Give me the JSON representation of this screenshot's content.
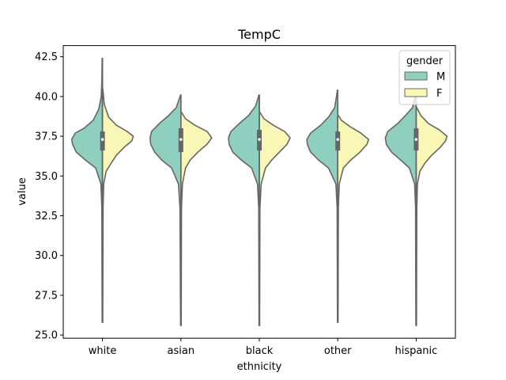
{
  "chart_data": {
    "type": "violin",
    "title": "TempC",
    "xlabel": "ethnicity",
    "ylabel": "value",
    "ylim": [
      24.8,
      43.2
    ],
    "yticks": [
      "25.0",
      "27.5",
      "30.0",
      "32.5",
      "35.0",
      "37.5",
      "40.0",
      "42.5"
    ],
    "categories": [
      "white",
      "asian",
      "black",
      "other",
      "hispanic"
    ],
    "split": true,
    "legend": {
      "title": "gender",
      "position": "top-right",
      "entries": [
        {
          "label": "M",
          "color": "#8ecfc0"
        },
        {
          "label": "F",
          "color": "#f9f7b6"
        }
      ]
    },
    "series": [
      {
        "name": "M",
        "color": "#8ecfc0",
        "distributions": [
          {
            "category": "white",
            "min": 25.8,
            "max": 42.4,
            "median": 37.3,
            "q1": 36.6,
            "q3": 37.8,
            "profile": [
              [
                25.8,
                0.01
              ],
              [
                33.0,
                0.02
              ],
              [
                34.5,
                0.05
              ],
              [
                35.5,
                0.22
              ],
              [
                36.0,
                0.55
              ],
              [
                36.5,
                0.85
              ],
              [
                37.0,
                0.97
              ],
              [
                37.3,
                1.0
              ],
              [
                37.7,
                0.88
              ],
              [
                38.0,
                0.6
              ],
              [
                38.5,
                0.3
              ],
              [
                39.2,
                0.12
              ],
              [
                40.0,
                0.04
              ],
              [
                41.0,
                0.02
              ],
              [
                42.4,
                0.01
              ]
            ]
          },
          {
            "category": "asian",
            "min": 25.6,
            "max": 40.1,
            "median": 37.3,
            "q1": 36.5,
            "q3": 38.0,
            "profile": [
              [
                25.6,
                0.01
              ],
              [
                33.0,
                0.03
              ],
              [
                34.5,
                0.08
              ],
              [
                35.5,
                0.3
              ],
              [
                36.0,
                0.62
              ],
              [
                36.5,
                0.85
              ],
              [
                37.0,
                0.98
              ],
              [
                37.4,
                1.0
              ],
              [
                37.8,
                0.95
              ],
              [
                38.3,
                0.7
              ],
              [
                38.8,
                0.4
              ],
              [
                39.3,
                0.15
              ],
              [
                40.1,
                0.01
              ]
            ]
          },
          {
            "category": "black",
            "min": 25.6,
            "max": 40.1,
            "median": 37.3,
            "q1": 36.6,
            "q3": 37.9,
            "profile": [
              [
                25.6,
                0.01
              ],
              [
                33.0,
                0.02
              ],
              [
                34.5,
                0.06
              ],
              [
                35.5,
                0.25
              ],
              [
                36.0,
                0.58
              ],
              [
                36.5,
                0.86
              ],
              [
                37.0,
                0.98
              ],
              [
                37.4,
                1.0
              ],
              [
                37.8,
                0.92
              ],
              [
                38.3,
                0.65
              ],
              [
                38.8,
                0.35
              ],
              [
                39.4,
                0.12
              ],
              [
                40.1,
                0.01
              ]
            ]
          },
          {
            "category": "other",
            "min": 25.8,
            "max": 40.4,
            "median": 37.3,
            "q1": 36.6,
            "q3": 37.8,
            "profile": [
              [
                25.8,
                0.01
              ],
              [
                33.0,
                0.02
              ],
              [
                34.5,
                0.06
              ],
              [
                35.5,
                0.3
              ],
              [
                36.0,
                0.62
              ],
              [
                36.5,
                0.88
              ],
              [
                37.0,
                0.99
              ],
              [
                37.3,
                1.0
              ],
              [
                37.7,
                0.88
              ],
              [
                38.2,
                0.55
              ],
              [
                38.7,
                0.3
              ],
              [
                39.3,
                0.1
              ],
              [
                40.4,
                0.01
              ]
            ]
          },
          {
            "category": "hispanic",
            "min": 25.6,
            "max": 40.2,
            "median": 37.3,
            "q1": 36.6,
            "q3": 38.0,
            "profile": [
              [
                25.6,
                0.01
              ],
              [
                33.0,
                0.02
              ],
              [
                34.5,
                0.05
              ],
              [
                35.5,
                0.22
              ],
              [
                36.0,
                0.5
              ],
              [
                36.5,
                0.8
              ],
              [
                37.0,
                0.97
              ],
              [
                37.4,
                1.0
              ],
              [
                37.8,
                0.92
              ],
              [
                38.3,
                0.6
              ],
              [
                38.8,
                0.35
              ],
              [
                39.3,
                0.12
              ],
              [
                40.2,
                0.01
              ]
            ]
          }
        ]
      },
      {
        "name": "F",
        "color": "#f9f7b6",
        "distributions": [
          {
            "category": "white",
            "min": 25.8,
            "max": 40.5,
            "median": 37.3,
            "q1": 36.6,
            "q3": 37.8,
            "profile": [
              [
                25.8,
                0.01
              ],
              [
                33.0,
                0.02
              ],
              [
                34.5,
                0.04
              ],
              [
                35.3,
                0.12
              ],
              [
                35.8,
                0.28
              ],
              [
                36.3,
                0.45
              ],
              [
                36.8,
                0.7
              ],
              [
                37.2,
                0.95
              ],
              [
                37.5,
                1.0
              ],
              [
                37.8,
                0.8
              ],
              [
                38.2,
                0.45
              ],
              [
                38.7,
                0.2
              ],
              [
                39.5,
                0.06
              ],
              [
                40.5,
                0.01
              ]
            ]
          },
          {
            "category": "asian",
            "min": 25.6,
            "max": 39.0,
            "median": 37.3,
            "q1": 36.5,
            "q3": 38.0,
            "profile": [
              [
                25.6,
                0.01
              ],
              [
                33.0,
                0.02
              ],
              [
                34.5,
                0.05
              ],
              [
                35.5,
                0.15
              ],
              [
                36.0,
                0.3
              ],
              [
                36.5,
                0.55
              ],
              [
                37.0,
                0.85
              ],
              [
                37.4,
                1.0
              ],
              [
                37.8,
                0.85
              ],
              [
                38.2,
                0.45
              ],
              [
                38.6,
                0.15
              ],
              [
                39.0,
                0.02
              ]
            ]
          },
          {
            "category": "black",
            "min": 25.6,
            "max": 39.0,
            "median": 37.3,
            "q1": 36.6,
            "q3": 37.9,
            "profile": [
              [
                25.6,
                0.01
              ],
              [
                33.0,
                0.02
              ],
              [
                34.5,
                0.06
              ],
              [
                35.5,
                0.2
              ],
              [
                36.0,
                0.4
              ],
              [
                36.5,
                0.65
              ],
              [
                37.0,
                0.9
              ],
              [
                37.4,
                1.0
              ],
              [
                37.8,
                0.82
              ],
              [
                38.2,
                0.45
              ],
              [
                38.6,
                0.15
              ],
              [
                39.0,
                0.02
              ]
            ]
          },
          {
            "category": "other",
            "min": 25.8,
            "max": 38.8,
            "median": 37.3,
            "q1": 36.6,
            "q3": 37.8,
            "profile": [
              [
                25.8,
                0.01
              ],
              [
                33.0,
                0.02
              ],
              [
                34.5,
                0.05
              ],
              [
                35.5,
                0.18
              ],
              [
                36.0,
                0.42
              ],
              [
                36.5,
                0.72
              ],
              [
                37.0,
                0.95
              ],
              [
                37.3,
                1.0
              ],
              [
                37.7,
                0.75
              ],
              [
                38.1,
                0.4
              ],
              [
                38.5,
                0.12
              ],
              [
                38.8,
                0.02
              ]
            ]
          },
          {
            "category": "hispanic",
            "min": 25.6,
            "max": 39.3,
            "median": 37.3,
            "q1": 36.6,
            "q3": 38.0,
            "profile": [
              [
                25.6,
                0.01
              ],
              [
                33.0,
                0.02
              ],
              [
                34.5,
                0.04
              ],
              [
                35.3,
                0.12
              ],
              [
                35.8,
                0.28
              ],
              [
                36.3,
                0.5
              ],
              [
                36.8,
                0.78
              ],
              [
                37.2,
                0.95
              ],
              [
                37.5,
                1.0
              ],
              [
                37.9,
                0.75
              ],
              [
                38.3,
                0.4
              ],
              [
                38.8,
                0.15
              ],
              [
                39.3,
                0.02
              ]
            ]
          }
        ]
      }
    ]
  }
}
